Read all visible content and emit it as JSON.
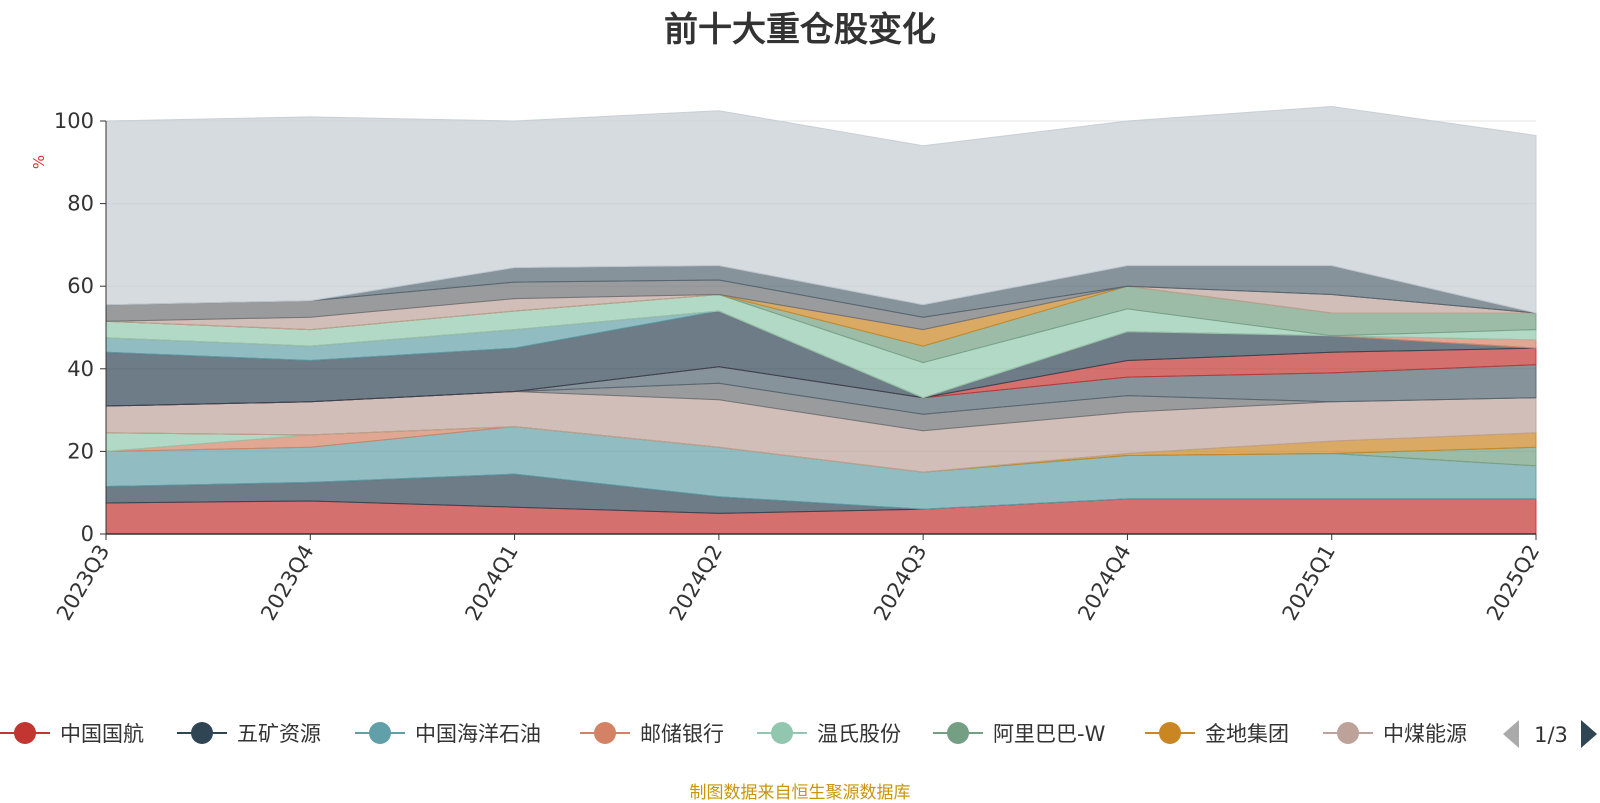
{
  "colors": {
    "title": "#333333",
    "axis": "#333333",
    "grid": "#e6e6e6",
    "footer": "#c8960a",
    "unit": "#e03030"
  },
  "footer": "制图数据来自恒生聚源数据库",
  "legend": {
    "page": "1/3",
    "prev_icon": "triangle-left",
    "next_icon": "triangle-right"
  },
  "chart_data": {
    "type": "area",
    "stacked": true,
    "title": "前十大重仓股变化",
    "ylabel": "%",
    "ylim": [
      0,
      100
    ],
    "yticks": [
      0,
      20,
      40,
      60,
      80,
      100
    ],
    "grid": true,
    "legend_position": "bottom",
    "categories": [
      "2023Q3",
      "2023Q4",
      "2024Q1",
      "2024Q2",
      "2024Q3",
      "2024Q4",
      "2025Q1",
      "2025Q2"
    ],
    "series": [
      {
        "name": "中国国航",
        "color": "#c23531",
        "values": [
          7.5,
          8.0,
          6.5,
          5.0,
          6.0,
          8.5,
          8.5,
          8.5
        ],
        "in_legend": true
      },
      {
        "name": "五矿资源",
        "color": "#2f4554",
        "values": [
          4.0,
          4.5,
          8.0,
          4.0,
          0,
          0,
          0,
          0
        ],
        "in_legend": true
      },
      {
        "name": "中国海洋石油",
        "color": "#61a0a8",
        "values": [
          8.5,
          8.5,
          11.5,
          12.0,
          9.0,
          10.5,
          11.0,
          8.0
        ],
        "in_legend": true
      },
      {
        "name": "邮储银行",
        "color": "#d48265",
        "values": [
          0,
          3.0,
          0,
          0,
          0,
          0,
          0,
          0
        ],
        "in_legend": true
      },
      {
        "name": "温氏股份",
        "color": "#91c7ae",
        "values": [
          4.5,
          0,
          0,
          0,
          0,
          0,
          0,
          0
        ],
        "in_legend": true
      },
      {
        "name": "阿里巴巴-W",
        "color": "#749f83",
        "values": [
          0,
          0,
          0,
          0,
          0,
          0,
          0,
          4.5
        ],
        "in_legend": true
      },
      {
        "name": "金地集团",
        "color": "#ca8622",
        "values": [
          0,
          0,
          0,
          0,
          0,
          0.5,
          3.0,
          3.5
        ],
        "in_legend": true
      },
      {
        "name": "中煤能源",
        "color": "#bda29a",
        "values": [
          6.5,
          8.0,
          8.5,
          11.5,
          10.0,
          10.0,
          9.5,
          8.5
        ],
        "in_legend": true
      },
      {
        "name": "",
        "color": "#6e7074",
        "values": [
          0,
          0,
          0,
          4.0,
          4.0,
          4.0,
          0,
          0
        ],
        "in_legend": false
      },
      {
        "name": "",
        "color": "#546570",
        "values": [
          0,
          0,
          0,
          4.0,
          4.0,
          4.5,
          7.0,
          8.0
        ],
        "in_legend": false
      },
      {
        "name": "",
        "color": "#c4ccd3",
        "values": [
          0,
          0,
          0,
          0,
          0,
          0,
          0,
          0
        ],
        "in_legend": false
      },
      {
        "name": "",
        "color": "#c23531",
        "values": [
          0,
          0,
          0,
          0,
          0,
          4.0,
          5.0,
          4.0
        ],
        "in_legend": false
      },
      {
        "name": "",
        "color": "#2f4554",
        "values": [
          13.0,
          10.0,
          10.5,
          13.5,
          0,
          7.0,
          4.0,
          0
        ],
        "in_legend": false
      },
      {
        "name": "",
        "color": "#61a0a8",
        "values": [
          3.5,
          3.5,
          4.5,
          0,
          0,
          0,
          0,
          0
        ],
        "in_legend": false
      },
      {
        "name": "",
        "color": "#d48265",
        "values": [
          0,
          0,
          0,
          0,
          0,
          0,
          0,
          2.0
        ],
        "in_legend": false
      },
      {
        "name": "",
        "color": "#91c7ae",
        "values": [
          4.0,
          4.0,
          4.5,
          4.0,
          8.5,
          5.5,
          0,
          2.5
        ],
        "in_legend": false
      },
      {
        "name": "",
        "color": "#749f83",
        "values": [
          0,
          0,
          0,
          0,
          4.0,
          5.5,
          5.5,
          4.0
        ],
        "in_legend": false
      },
      {
        "name": "",
        "color": "#ca8622",
        "values": [
          0,
          0,
          0,
          0,
          4.0,
          0,
          0,
          0
        ],
        "in_legend": false
      },
      {
        "name": "",
        "color": "#bda29a",
        "values": [
          0,
          3.0,
          3.0,
          0,
          0,
          0,
          4.5,
          0
        ],
        "in_legend": false
      },
      {
        "name": "",
        "color": "#6e7074",
        "values": [
          4.0,
          4.0,
          4.0,
          3.5,
          3.0,
          0,
          0,
          0
        ],
        "in_legend": false
      },
      {
        "name": "",
        "color": "#546570",
        "values": [
          0,
          0,
          3.5,
          3.5,
          3.0,
          5.0,
          7.0,
          0
        ],
        "in_legend": false
      },
      {
        "name": "",
        "color": "#c4ccd3",
        "values": [
          44.5,
          44.5,
          35.5,
          37.5,
          38.5,
          35.0,
          38.5,
          43.0
        ],
        "in_legend": false
      }
    ]
  }
}
